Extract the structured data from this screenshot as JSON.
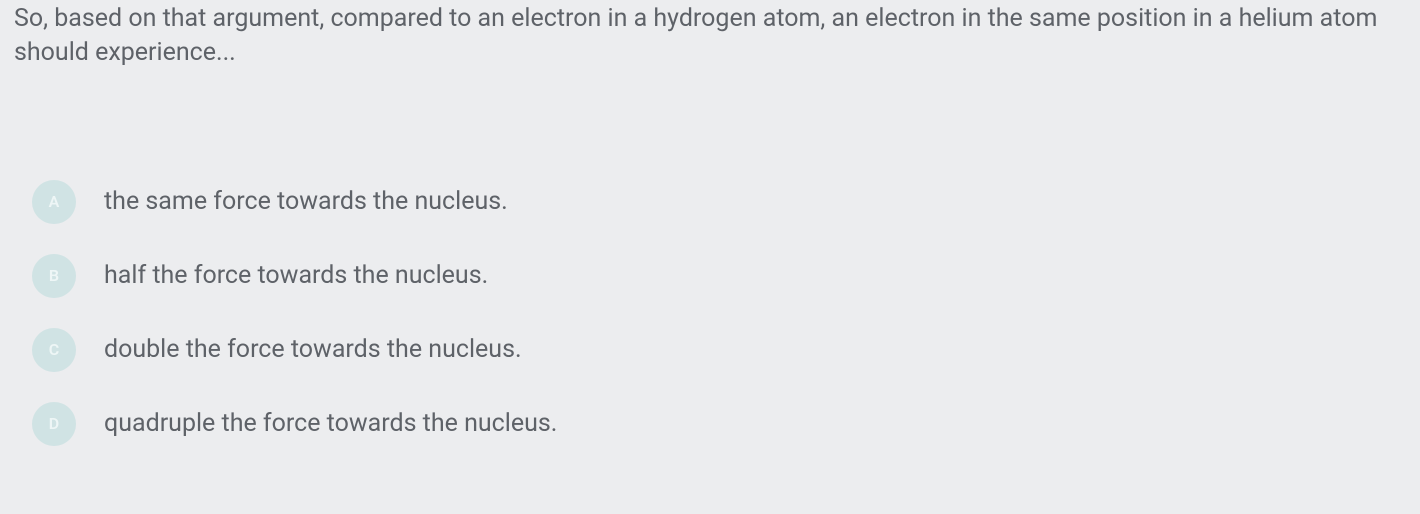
{
  "question": {
    "text": "So, based on that argument, compared to an electron in a hydrogen atom, an electron in the same position in a helium atom should experience...",
    "fontsize": 25,
    "color": "#5e6268"
  },
  "answers": [
    {
      "letter": "A",
      "text": "the same force towards the nucleus."
    },
    {
      "letter": "B",
      "text": "half the force towards the nucleus."
    },
    {
      "letter": "C",
      "text": "double the force towards the nucleus."
    },
    {
      "letter": "D",
      "text": "quadruple the force towards the nucleus."
    }
  ],
  "styling": {
    "background_color": "#ecedef",
    "badge_background": "#d0e3e4",
    "badge_text_color": "#eef6f6",
    "answer_text_color": "#5e6268",
    "answer_fontsize": 25,
    "badge_size": 44
  }
}
